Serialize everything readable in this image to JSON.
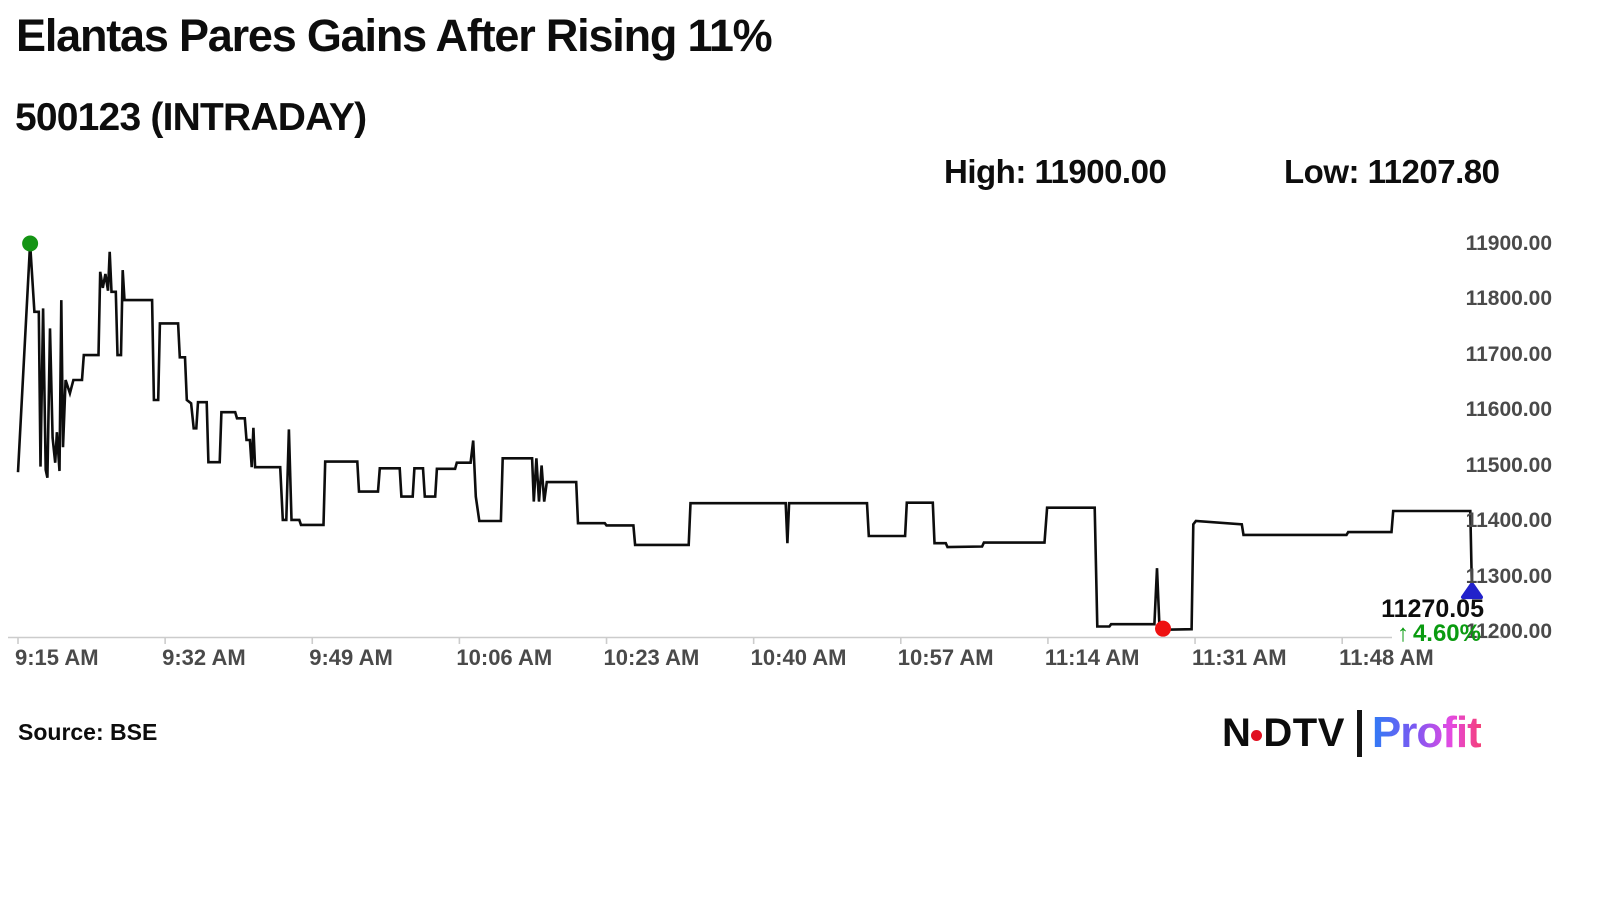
{
  "header": {
    "title": "Elantas Pares Gains After Rising 11%",
    "subtitle": "500123 (INTRADAY)",
    "high": "High: 11900.00",
    "low": "Low: 11207.80"
  },
  "chart_data": {
    "type": "line",
    "title": "500123 (INTRADAY)",
    "legend": "none",
    "grid": "off",
    "x_axis": {
      "unit": "minutes since 9:15 AM",
      "tick_labels": [
        "9:15 AM",
        "9:32 AM",
        "9:49 AM",
        "10:06 AM",
        "10:23 AM",
        "10:40 AM",
        "10:57 AM",
        "11:14 AM",
        "11:31 AM",
        "11:48 AM"
      ],
      "tick_minutes": [
        0,
        17,
        34,
        51,
        68,
        85,
        102,
        119,
        136,
        153
      ],
      "xlim_minutes": [
        0,
        168
      ]
    },
    "y_axis": {
      "tick_labels": [
        "11900.00",
        "11800.00",
        "11700.00",
        "11600.00",
        "11500.00",
        "11400.00",
        "11300.00",
        "11200.00"
      ],
      "tick_values": [
        11900,
        11800,
        11700,
        11600,
        11500,
        11400,
        11300,
        11200
      ],
      "ylim": [
        11200,
        11900
      ]
    },
    "high_value": 11900.0,
    "low_value": 11207.8,
    "last_value": 11270.05,
    "change_pct": 4.6,
    "series": [
      {
        "name": "500123 intraday price",
        "points_min_price": [
          [
            0,
            11488
          ],
          [
            1.4,
            11900
          ],
          [
            1.9,
            11777
          ],
          [
            2.4,
            11777
          ],
          [
            2.6,
            11498
          ],
          [
            2.9,
            11783
          ],
          [
            3.2,
            11492
          ],
          [
            3.4,
            11478
          ],
          [
            3.7,
            11747
          ],
          [
            4.0,
            11550
          ],
          [
            4.3,
            11505
          ],
          [
            4.5,
            11560
          ],
          [
            4.8,
            11490
          ],
          [
            5.0,
            11798
          ],
          [
            5.2,
            11533
          ],
          [
            5.5,
            11654
          ],
          [
            6.0,
            11630
          ],
          [
            6.4,
            11654
          ],
          [
            7.4,
            11654
          ],
          [
            7.6,
            11699
          ],
          [
            9.3,
            11699
          ],
          [
            9.5,
            11849
          ],
          [
            9.8,
            11820
          ],
          [
            10.1,
            11845
          ],
          [
            10.4,
            11815
          ],
          [
            10.6,
            11885
          ],
          [
            10.8,
            11813
          ],
          [
            11.3,
            11813
          ],
          [
            11.5,
            11699
          ],
          [
            11.9,
            11699
          ],
          [
            12.1,
            11852
          ],
          [
            12.3,
            11798
          ],
          [
            15.5,
            11798
          ],
          [
            15.7,
            11618
          ],
          [
            16.2,
            11618
          ],
          [
            16.4,
            11756
          ],
          [
            18.5,
            11756
          ],
          [
            18.7,
            11695
          ],
          [
            19.3,
            11695
          ],
          [
            19.5,
            11618
          ],
          [
            20.0,
            11612
          ],
          [
            20.3,
            11567
          ],
          [
            20.6,
            11567
          ],
          [
            20.8,
            11614
          ],
          [
            21.8,
            11614
          ],
          [
            22.0,
            11506
          ],
          [
            23.3,
            11506
          ],
          [
            23.5,
            11596
          ],
          [
            25.1,
            11596
          ],
          [
            25.3,
            11585
          ],
          [
            26.2,
            11585
          ],
          [
            26.4,
            11546
          ],
          [
            26.8,
            11546
          ],
          [
            27.0,
            11497
          ],
          [
            27.2,
            11568
          ],
          [
            27.4,
            11497
          ],
          [
            30.3,
            11497
          ],
          [
            30.6,
            11402
          ],
          [
            31.0,
            11402
          ],
          [
            31.3,
            11565
          ],
          [
            31.6,
            11402
          ],
          [
            32.5,
            11402
          ],
          [
            32.7,
            11393
          ],
          [
            35.3,
            11393
          ],
          [
            35.5,
            11507
          ],
          [
            39.2,
            11507
          ],
          [
            39.4,
            11453
          ],
          [
            41.6,
            11453
          ],
          [
            41.8,
            11495
          ],
          [
            44.1,
            11495
          ],
          [
            44.3,
            11444
          ],
          [
            45.6,
            11444
          ],
          [
            45.8,
            11495
          ],
          [
            46.8,
            11495
          ],
          [
            47.0,
            11444
          ],
          [
            48.2,
            11444
          ],
          [
            48.4,
            11494
          ],
          [
            50.5,
            11494
          ],
          [
            50.7,
            11505
          ],
          [
            52.3,
            11505
          ],
          [
            52.6,
            11545
          ],
          [
            52.9,
            11444
          ],
          [
            53.3,
            11400
          ],
          [
            55.8,
            11400
          ],
          [
            56.0,
            11513
          ],
          [
            59.4,
            11513
          ],
          [
            59.6,
            11435
          ],
          [
            59.9,
            11513
          ],
          [
            60.2,
            11435
          ],
          [
            60.5,
            11500
          ],
          [
            60.8,
            11435
          ],
          [
            61.1,
            11470
          ],
          [
            64.5,
            11470
          ],
          [
            64.7,
            11396
          ],
          [
            67.8,
            11396
          ],
          [
            68.0,
            11392
          ],
          [
            71.1,
            11392
          ],
          [
            71.3,
            11357
          ],
          [
            77.5,
            11357
          ],
          [
            77.7,
            11432
          ],
          [
            88.7,
            11432
          ],
          [
            88.9,
            11360
          ],
          [
            89.1,
            11432
          ],
          [
            98.1,
            11432
          ],
          [
            98.3,
            11373
          ],
          [
            102.5,
            11373
          ],
          [
            102.7,
            11433
          ],
          [
            105.7,
            11433
          ],
          [
            105.9,
            11360
          ],
          [
            107.2,
            11360
          ],
          [
            107.4,
            11353
          ],
          [
            111.4,
            11354
          ],
          [
            111.6,
            11361
          ],
          [
            118.6,
            11361
          ],
          [
            118.9,
            11424
          ],
          [
            124.4,
            11424
          ],
          [
            124.7,
            11210
          ],
          [
            126.1,
            11210
          ],
          [
            126.3,
            11214
          ],
          [
            131.3,
            11214
          ],
          [
            131.6,
            11315
          ],
          [
            131.9,
            11204
          ],
          [
            135.6,
            11205
          ],
          [
            135.8,
            11394
          ],
          [
            136.1,
            11400
          ],
          [
            141.4,
            11394
          ],
          [
            141.6,
            11375
          ],
          [
            153.5,
            11375
          ],
          [
            153.7,
            11380
          ],
          [
            158.7,
            11380
          ],
          [
            158.9,
            11418
          ],
          [
            167.8,
            11418
          ],
          [
            168.0,
            11270.05
          ]
        ]
      }
    ],
    "markers": {
      "high": {
        "t": 1.4,
        "price": 11900.0,
        "shape": "circle"
      },
      "low": {
        "t": 132.3,
        "price": 11206.0,
        "shape": "circle"
      },
      "last": {
        "t": 168.0,
        "price": 11270.05,
        "shape": "triangle-up"
      }
    },
    "annotation": {
      "last_price": "11270.05",
      "change_arrow": "↑",
      "change_text": "4.60%"
    }
  },
  "footer": {
    "source": "Source: BSE",
    "logo": {
      "ndtv_left": "N",
      "ndtv_right": "DTV",
      "profit": "Profit"
    }
  },
  "colors": {
    "line": "#0d0d0d",
    "high_marker": "#149414",
    "low_marker": "#ee1111",
    "last_marker": "#2222cb",
    "change_green": "#0a9b10",
    "logo_dot_red": "#e01020",
    "axis_text": "#4a4a4a",
    "axis_line": "#cccccc"
  }
}
